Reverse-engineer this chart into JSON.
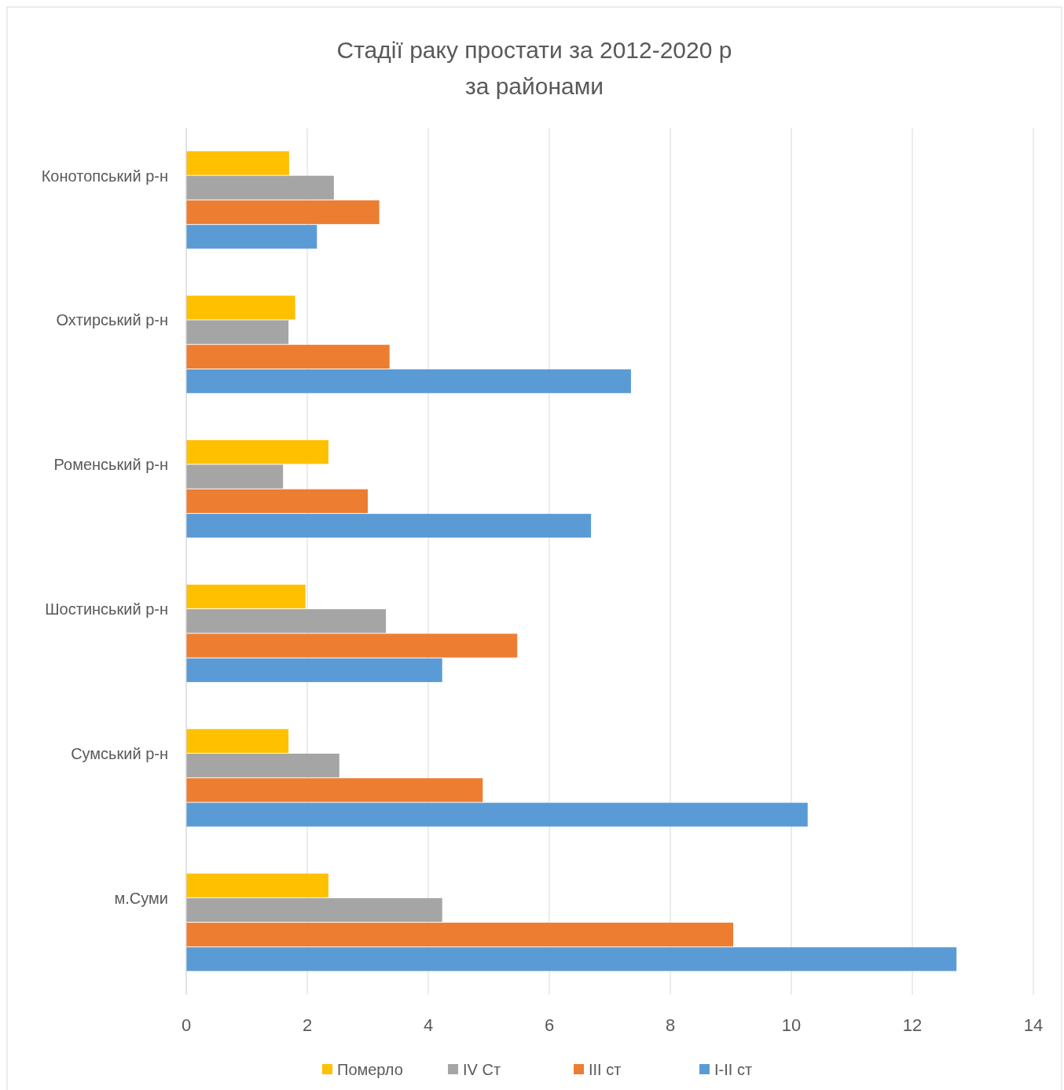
{
  "chart_data": {
    "type": "bar",
    "orientation": "horizontal",
    "title": "Стадії раку простати за 2012-2020 р\nза районами",
    "categories": [
      "Конотопський р-н",
      "Охтирський р-н",
      "Роменський р-н",
      "Шостинський р-н",
      "Сумський р-н",
      "м.Суми"
    ],
    "series": [
      {
        "name": "Померло",
        "color": "#ffc000",
        "values": [
          1.7,
          1.8,
          2.35,
          1.97,
          1.69,
          2.35
        ]
      },
      {
        "name": "IV Ст",
        "color": "#a5a5a5",
        "values": [
          2.44,
          1.69,
          1.6,
          3.3,
          2.53,
          4.23
        ]
      },
      {
        "name": "III ст",
        "color": "#ed7d31",
        "values": [
          3.19,
          3.36,
          3.0,
          5.47,
          4.9,
          9.04
        ]
      },
      {
        "name": "I-II ст",
        "color": "#5b9bd5",
        "values": [
          2.16,
          7.35,
          6.69,
          4.23,
          10.27,
          12.73
        ]
      }
    ],
    "xlim": [
      0,
      14
    ],
    "xticks": [
      0,
      2,
      4,
      6,
      8,
      10,
      12,
      14
    ],
    "grid": "x",
    "legend": "bottom"
  }
}
